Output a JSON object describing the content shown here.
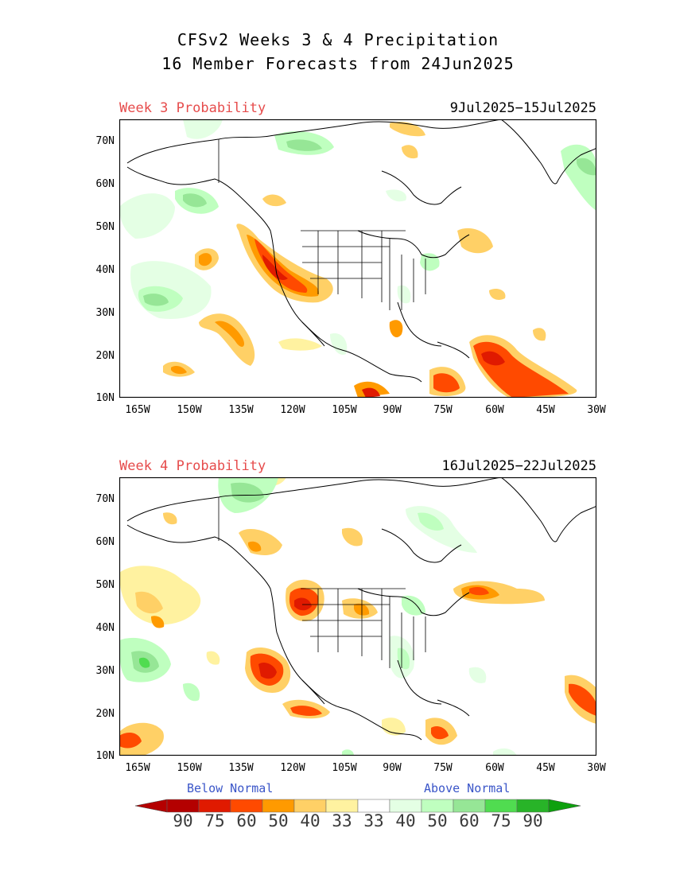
{
  "title": {
    "line1": "CFSv2 Weeks 3 & 4 Precipitation",
    "line2": "16 Member Forecasts from 24Jun2025"
  },
  "panels": [
    {
      "label": "Week 3 Probability",
      "dates": "9Jul2025−15Jul2025"
    },
    {
      "label": "Week 4 Probability",
      "dates": "16Jul2025−22Jul2025"
    }
  ],
  "axes": {
    "lat_labels": [
      "70N",
      "60N",
      "50N",
      "40N",
      "30N",
      "20N",
      "10N"
    ],
    "lon_labels": [
      "165W",
      "150W",
      "135W",
      "120W",
      "105W",
      "90W",
      "75W",
      "60W",
      "45W",
      "30W"
    ]
  },
  "legend": {
    "below_label": "Below Normal",
    "above_label": "Above Normal",
    "numbers": [
      "90",
      "75",
      "60",
      "50",
      "40",
      "33",
      "33",
      "40",
      "50",
      "60",
      "75",
      "90"
    ],
    "colors": [
      "#b40000",
      "#e01a00",
      "#ff4a00",
      "#ff9a00",
      "#ffd066",
      "#fff2a0",
      "#ffffff",
      "#e4ffe4",
      "#bfffbf",
      "#96e696",
      "#50dc50",
      "#28b428"
    ],
    "low_arrow_color": "#b40000",
    "high_arrow_color": "#0ea00e"
  }
}
